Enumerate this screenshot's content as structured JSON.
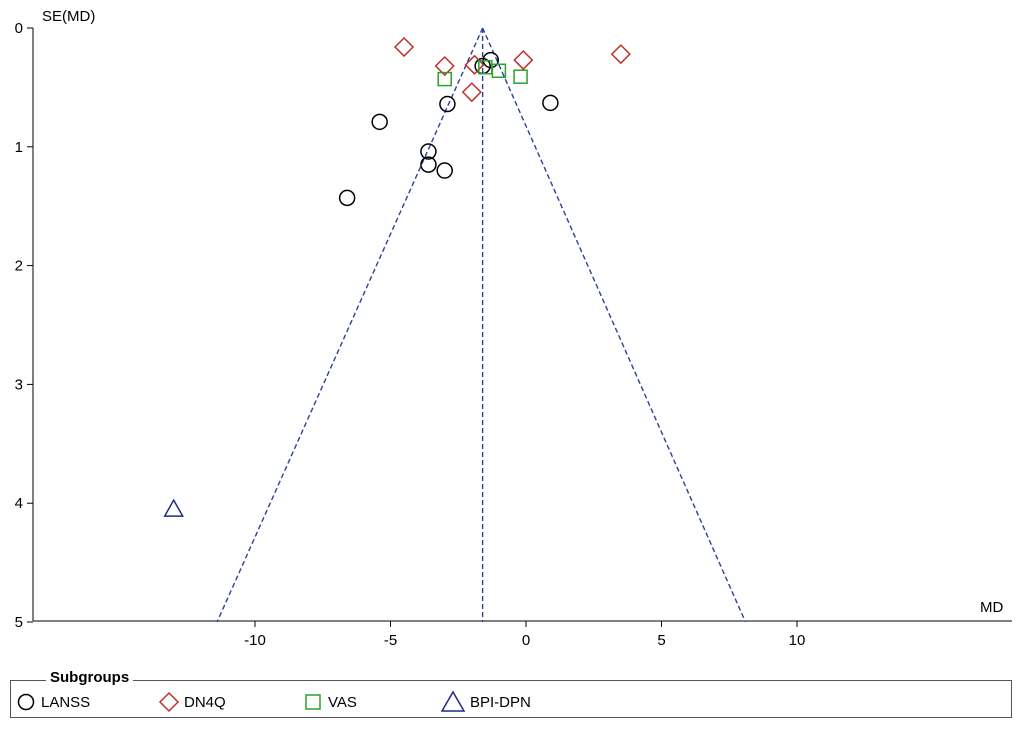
{
  "chart_data": {
    "type": "scatter",
    "xlabel": "MD",
    "ylabel": "SE(MD)",
    "xlim": [
      -18,
      18
    ],
    "ylim": [
      0,
      5
    ],
    "y_inverted": true,
    "xticks": [
      -10,
      -5,
      0,
      5,
      10
    ],
    "yticks": [
      0,
      1,
      2,
      3,
      4,
      5
    ],
    "pooled_md": -1.6,
    "funnel_limits": {
      "se_max": 5,
      "left_x": -11.4,
      "right_x": 8.1
    },
    "legend_title": "Subgroups",
    "legend_position": "bottom",
    "series": [
      {
        "name": "LANSS",
        "marker": "circle",
        "color": "#000000",
        "points": [
          [
            -6.6,
            1.43
          ],
          [
            -5.4,
            0.79
          ],
          [
            -3.6,
            1.04
          ],
          [
            -3.6,
            1.15
          ],
          [
            -3.0,
            1.2
          ],
          [
            -2.9,
            0.64
          ],
          [
            0.9,
            0.63
          ],
          [
            -1.3,
            0.27
          ],
          [
            -1.6,
            0.32
          ]
        ]
      },
      {
        "name": "DN4Q",
        "marker": "diamond",
        "color": "#c0302b",
        "points": [
          [
            -4.5,
            0.16
          ],
          [
            -3.0,
            0.32
          ],
          [
            -1.9,
            0.31
          ],
          [
            -2.0,
            0.54
          ],
          [
            -0.1,
            0.27
          ],
          [
            3.5,
            0.22
          ]
        ]
      },
      {
        "name": "VAS",
        "marker": "square",
        "color": "#2ca02c",
        "points": [
          [
            -3.0,
            0.43
          ],
          [
            -1.5,
            0.33
          ],
          [
            -1.0,
            0.36
          ],
          [
            -0.2,
            0.41
          ]
        ]
      },
      {
        "name": "BPI-DPN",
        "marker": "triangle",
        "color": "#1f2a8a",
        "points": [
          [
            -13.0,
            4.05
          ]
        ]
      }
    ]
  }
}
